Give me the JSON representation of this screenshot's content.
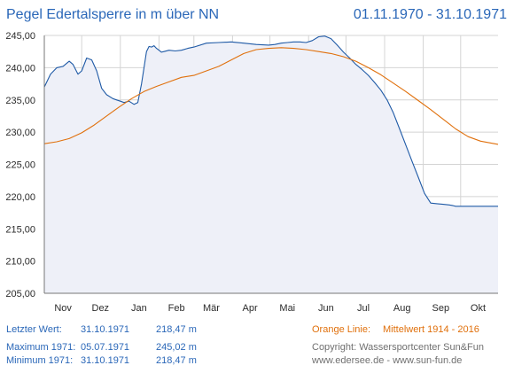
{
  "header": {
    "title": "Pegel Edertalsperre in m über NN",
    "date_range": "01.11.1970 - 31.10.1971"
  },
  "stats": {
    "last": {
      "label": "Letzter Wert:",
      "date": "31.10.1971",
      "value": "218,47 m"
    },
    "max": {
      "label": "Maximum 1971:",
      "date": "05.07.1971",
      "value": "245,02 m"
    },
    "min": {
      "label": "Minimum  1971:",
      "date": "31.10.1971",
      "value": "218,47 m"
    }
  },
  "footer": {
    "orange_label": "Orange Linie:",
    "orange_desc": "Mittelwert   1914 - 2016",
    "copyright": "Copyright: Wassersportcenter Sun&Fun",
    "links": "www.edersee.de    -    www.sun-fun.de"
  },
  "colors": {
    "actual": "#1f5aa6",
    "mean": "#e0700c",
    "fill": "#eef0f8",
    "grid": "#d4d4d4",
    "axis": "#777777"
  },
  "chart_data": {
    "type": "line",
    "x_unit": "day since 01.11.1970",
    "xlim": [
      0,
      364
    ],
    "ylim": [
      205,
      245
    ],
    "y_ticks": [
      "205,00",
      "210,00",
      "215,00",
      "220,00",
      "225,00",
      "230,00",
      "235,00",
      "240,00",
      "245,00"
    ],
    "y_tick_values": [
      205,
      210,
      215,
      220,
      225,
      230,
      235,
      240,
      245
    ],
    "x_ticks": [
      {
        "label": "Nov",
        "day": 15
      },
      {
        "label": "Dez",
        "day": 45
      },
      {
        "label": "Jan",
        "day": 76
      },
      {
        "label": "Feb",
        "day": 106
      },
      {
        "label": "Mär",
        "day": 134
      },
      {
        "label": "Apr",
        "day": 165
      },
      {
        "label": "Mai",
        "day": 195
      },
      {
        "label": "Jun",
        "day": 226
      },
      {
        "label": "Jul",
        "day": 256
      },
      {
        "label": "Aug",
        "day": 287
      },
      {
        "label": "Sep",
        "day": 318
      },
      {
        "label": "Okt",
        "day": 348
      }
    ],
    "x_month_boundaries": [
      30,
      61,
      92,
      120,
      151,
      181,
      212,
      242,
      273,
      304,
      334
    ],
    "series": [
      {
        "name": "Pegel",
        "color": "#1f5aa6",
        "x": [
          0,
          5,
          10,
          15,
          20,
          23,
          27,
          30,
          34,
          38,
          42,
          46,
          50,
          55,
          58,
          61,
          64,
          68,
          72,
          75,
          78,
          80,
          82,
          84,
          86,
          88,
          90,
          92,
          94,
          96,
          100,
          105,
          110,
          115,
          120,
          130,
          140,
          150,
          160,
          170,
          180,
          185,
          190,
          195,
          200,
          205,
          210,
          215,
          220,
          225,
          230,
          235,
          240,
          245,
          250,
          255,
          260,
          265,
          270,
          275,
          280,
          285,
          290,
          295,
          300,
          305,
          310,
          315,
          320,
          325,
          328,
          330,
          334,
          340,
          350,
          360,
          364
        ],
        "y": [
          237.0,
          239.0,
          240.0,
          240.2,
          241.0,
          240.5,
          239.0,
          239.5,
          241.5,
          241.2,
          239.5,
          236.8,
          235.8,
          235.2,
          235.0,
          234.8,
          234.6,
          234.8,
          234.3,
          234.6,
          237.5,
          240.0,
          242.5,
          243.3,
          243.2,
          243.4,
          243.0,
          242.7,
          242.4,
          242.5,
          242.7,
          242.6,
          242.7,
          243.0,
          243.2,
          243.8,
          243.9,
          244.0,
          243.8,
          243.6,
          243.5,
          243.6,
          243.8,
          243.9,
          244.0,
          244.0,
          243.9,
          244.2,
          244.8,
          244.9,
          244.5,
          243.5,
          242.4,
          241.5,
          240.5,
          239.7,
          238.8,
          237.7,
          236.5,
          235.0,
          233.0,
          230.5,
          228.0,
          225.5,
          223.0,
          220.5,
          219.0,
          218.9,
          218.8,
          218.7,
          218.6,
          218.5,
          218.5,
          218.5,
          218.5,
          218.5,
          218.5
        ]
      },
      {
        "name": "Mittelwert 1914 - 2016",
        "color": "#e0700c",
        "x": [
          0,
          10,
          20,
          30,
          40,
          50,
          60,
          70,
          80,
          90,
          100,
          110,
          120,
          130,
          140,
          150,
          160,
          170,
          180,
          190,
          200,
          210,
          220,
          230,
          240,
          250,
          260,
          270,
          280,
          290,
          300,
          310,
          320,
          330,
          340,
          350,
          364
        ],
        "y": [
          228.2,
          228.5,
          229.0,
          229.9,
          231.1,
          232.5,
          233.9,
          235.2,
          236.3,
          237.1,
          237.8,
          238.5,
          238.8,
          239.5,
          240.2,
          241.2,
          242.2,
          242.8,
          243.0,
          243.1,
          243.0,
          242.8,
          242.5,
          242.2,
          241.7,
          241.0,
          240.0,
          238.9,
          237.6,
          236.3,
          234.9,
          233.5,
          232.0,
          230.5,
          229.3,
          228.6,
          228.1
        ]
      }
    ]
  }
}
